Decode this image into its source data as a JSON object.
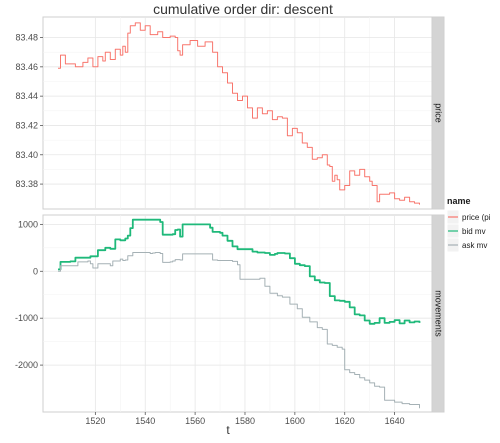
{
  "chart_data": {
    "type": "line",
    "title": "cumulative order dir: descent",
    "xlabel": "t",
    "x_ticks": [
      1520,
      1540,
      1560,
      1580,
      1600,
      1620,
      1640
    ],
    "xlim": [
      1499,
      1655
    ],
    "grid": true,
    "legend_position": "right",
    "legend": {
      "title": "name",
      "entries": [
        {
          "label": "price (pi",
          "color": "#f8766d"
        },
        {
          "label": "bid mv",
          "color": "#1fb97a"
        },
        {
          "label": "ask mv",
          "color": "#a5b1b5"
        }
      ]
    },
    "panels": [
      {
        "strip_label": "price",
        "ylim": [
          83.363,
          83.494
        ],
        "y_ticks": [
          83.38,
          83.4,
          83.42,
          83.44,
          83.46,
          83.48
        ],
        "y_tick_labels": [
          "83.38",
          "83.40",
          "83.42",
          "83.44",
          "83.46",
          "83.48"
        ],
        "series": [
          {
            "name": "price (pi",
            "color": "#f8766d",
            "points": [
              [
                1505,
                83.459
              ],
              [
                1506,
                83.468
              ],
              [
                1508,
                83.462
              ],
              [
                1512,
                83.46
              ],
              [
                1515,
                83.463
              ],
              [
                1517,
                83.466
              ],
              [
                1519,
                83.46
              ],
              [
                1521,
                83.467
              ],
              [
                1523,
                83.464
              ],
              [
                1524,
                83.47
              ],
              [
                1526,
                83.465
              ],
              [
                1528,
                83.472
              ],
              [
                1530,
                83.468
              ],
              [
                1531,
                83.474
              ],
              [
                1532,
                83.47
              ],
              [
                1533,
                83.483
              ],
              [
                1534,
                83.488
              ],
              [
                1536,
                83.49
              ],
              [
                1538,
                83.485
              ],
              [
                1540,
                83.488
              ],
              [
                1542,
                83.482
              ],
              [
                1545,
                83.484
              ],
              [
                1547,
                83.48
              ],
              [
                1550,
                83.481
              ],
              [
                1552,
                83.48
              ],
              [
                1553,
                83.471
              ],
              [
                1554,
                83.468
              ],
              [
                1555,
                83.475
              ],
              [
                1558,
                83.478
              ],
              [
                1561,
                83.474
              ],
              [
                1564,
                83.477
              ],
              [
                1567,
                83.47
              ],
              [
                1569,
                83.46
              ],
              [
                1571,
                83.456
              ],
              [
                1573,
                83.449
              ],
              [
                1575,
                83.442
              ],
              [
                1577,
                83.437
              ],
              [
                1579,
                83.44
              ],
              [
                1581,
                83.432
              ],
              [
                1583,
                83.425
              ],
              [
                1585,
                83.432
              ],
              [
                1587,
                83.428
              ],
              [
                1589,
                83.43
              ],
              [
                1591,
                83.424
              ],
              [
                1593,
                83.426
              ],
              [
                1595,
                83.425
              ],
              [
                1597,
                83.413
              ],
              [
                1599,
                83.418
              ],
              [
                1601,
                83.415
              ],
              [
                1603,
                83.408
              ],
              [
                1605,
                83.405
              ],
              [
                1607,
                83.397
              ],
              [
                1609,
                83.398
              ],
              [
                1611,
                83.4
              ],
              [
                1613,
                83.393
              ],
              [
                1614,
                83.392
              ],
              [
                1615,
                83.382
              ],
              [
                1616,
                83.386
              ],
              [
                1617,
                83.383
              ],
              [
                1618,
                83.376
              ],
              [
                1620,
                83.379
              ],
              [
                1622,
                83.389
              ],
              [
                1624,
                83.386
              ],
              [
                1626,
                83.39
              ],
              [
                1628,
                83.385
              ],
              [
                1630,
                83.382
              ],
              [
                1631,
                83.379
              ],
              [
                1633,
                83.368
              ],
              [
                1634,
                83.373
              ],
              [
                1636,
                83.373
              ],
              [
                1638,
                83.374
              ],
              [
                1640,
                83.37
              ],
              [
                1642,
                83.369
              ],
              [
                1644,
                83.371
              ],
              [
                1646,
                83.368
              ],
              [
                1648,
                83.367
              ],
              [
                1650,
                83.366
              ]
            ]
          }
        ]
      },
      {
        "strip_label": "movements",
        "ylim": [
          -3000,
          1200
        ],
        "y_ticks": [
          -2000,
          -1000,
          0,
          1000
        ],
        "y_tick_labels": [
          "-2000",
          "-1000",
          "0",
          "1000"
        ],
        "series": [
          {
            "name": "bid mv",
            "color": "#1fb97a",
            "points": [
              [
                1505,
                40
              ],
              [
                1506,
                200
              ],
              [
                1510,
                210
              ],
              [
                1512,
                290
              ],
              [
                1518,
                320
              ],
              [
                1521,
                450
              ],
              [
                1524,
                500
              ],
              [
                1526,
                480
              ],
              [
                1528,
                680
              ],
              [
                1530,
                660
              ],
              [
                1532,
                700
              ],
              [
                1533,
                760
              ],
              [
                1534,
                920
              ],
              [
                1535,
                1100
              ],
              [
                1545,
                1100
              ],
              [
                1546,
                1050
              ],
              [
                1547,
                780
              ],
              [
                1551,
                790
              ],
              [
                1552,
                880
              ],
              [
                1553,
                890
              ],
              [
                1554,
                740
              ],
              [
                1555,
                1000
              ],
              [
                1565,
                1000
              ],
              [
                1566,
                930
              ],
              [
                1567,
                840
              ],
              [
                1570,
                820
              ],
              [
                1571,
                760
              ],
              [
                1573,
                650
              ],
              [
                1575,
                530
              ],
              [
                1577,
                470
              ],
              [
                1582,
                470
              ],
              [
                1583,
                420
              ],
              [
                1585,
                400
              ],
              [
                1588,
                390
              ],
              [
                1590,
                350
              ],
              [
                1592,
                370
              ],
              [
                1593,
                390
              ],
              [
                1596,
                380
              ],
              [
                1598,
                280
              ],
              [
                1600,
                160
              ],
              [
                1602,
                130
              ],
              [
                1604,
                110
              ],
              [
                1606,
                -110
              ],
              [
                1608,
                -190
              ],
              [
                1610,
                -240
              ],
              [
                1612,
                -250
              ],
              [
                1614,
                -530
              ],
              [
                1616,
                -620
              ],
              [
                1618,
                -630
              ],
              [
                1620,
                -650
              ],
              [
                1622,
                -770
              ],
              [
                1624,
                -920
              ],
              [
                1626,
                -940
              ],
              [
                1628,
                -1050
              ],
              [
                1630,
                -1120
              ],
              [
                1632,
                -1100
              ],
              [
                1634,
                -1000
              ],
              [
                1636,
                -1100
              ],
              [
                1638,
                -1080
              ],
              [
                1640,
                -1040
              ],
              [
                1642,
                -1110
              ],
              [
                1644,
                -1050
              ],
              [
                1646,
                -1090
              ],
              [
                1648,
                -1070
              ],
              [
                1650,
                -1100
              ]
            ]
          },
          {
            "name": "ask mv",
            "color": "#a5b1b5",
            "points": [
              [
                1505,
                0
              ],
              [
                1506,
                120
              ],
              [
                1512,
                120
              ],
              [
                1513,
                200
              ],
              [
                1517,
                220
              ],
              [
                1518,
                160
              ],
              [
                1519,
                70
              ],
              [
                1521,
                160
              ],
              [
                1524,
                160
              ],
              [
                1526,
                120
              ],
              [
                1527,
                220
              ],
              [
                1530,
                260
              ],
              [
                1531,
                230
              ],
              [
                1532,
                240
              ],
              [
                1533,
                330
              ],
              [
                1535,
                400
              ],
              [
                1540,
                400
              ],
              [
                1542,
                380
              ],
              [
                1543,
                390
              ],
              [
                1544,
                400
              ],
              [
                1546,
                380
              ],
              [
                1547,
                190
              ],
              [
                1550,
                200
              ],
              [
                1551,
                220
              ],
              [
                1552,
                250
              ],
              [
                1554,
                240
              ],
              [
                1555,
                370
              ],
              [
                1565,
                370
              ],
              [
                1567,
                240
              ],
              [
                1569,
                230
              ],
              [
                1575,
                210
              ],
              [
                1577,
                140
              ],
              [
                1578,
                -170
              ],
              [
                1583,
                -170
              ],
              [
                1586,
                -150
              ],
              [
                1588,
                -320
              ],
              [
                1590,
                -470
              ],
              [
                1593,
                -520
              ],
              [
                1595,
                -550
              ],
              [
                1598,
                -700
              ],
              [
                1601,
                -800
              ],
              [
                1603,
                -980
              ],
              [
                1606,
                -1080
              ],
              [
                1609,
                -1200
              ],
              [
                1611,
                -1240
              ],
              [
                1613,
                -1550
              ],
              [
                1615,
                -1580
              ],
              [
                1617,
                -1620
              ],
              [
                1619,
                -1660
              ],
              [
                1620,
                -2100
              ],
              [
                1622,
                -2160
              ],
              [
                1624,
                -2200
              ],
              [
                1626,
                -2270
              ],
              [
                1628,
                -2320
              ],
              [
                1630,
                -2380
              ],
              [
                1632,
                -2450
              ],
              [
                1634,
                -2470
              ],
              [
                1636,
                -2750
              ],
              [
                1640,
                -2790
              ],
              [
                1643,
                -2820
              ],
              [
                1646,
                -2840
              ],
              [
                1650,
                -2920
              ]
            ]
          }
        ]
      }
    ]
  }
}
